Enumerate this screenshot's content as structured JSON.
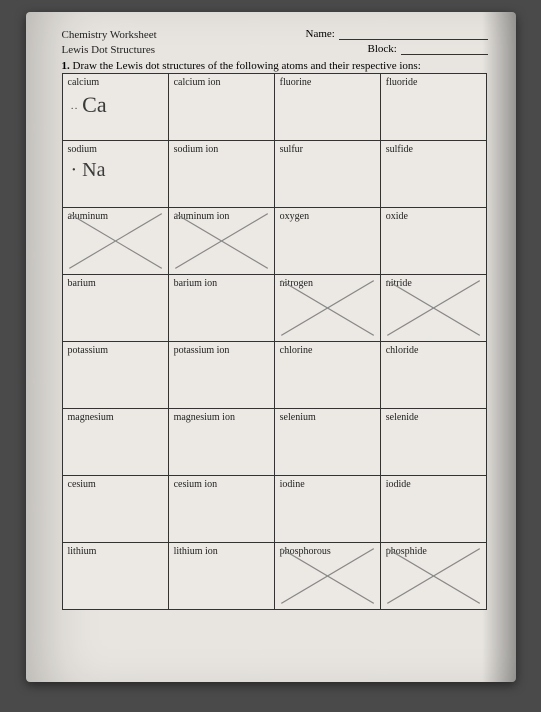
{
  "header": {
    "title1": "Chemistry Worksheet",
    "title2": "Lewis Dot Structures",
    "name_label": "Name:",
    "block_label": "Block:",
    "instruction_num": "1.",
    "instruction": "Draw the Lewis dot structures of the following atoms and their respective ions:"
  },
  "handwritten": {
    "ca": "Ca",
    "na": "Na"
  },
  "table": {
    "rows": [
      {
        "a": "calcium",
        "b": "calcium ion",
        "c": "fluorine",
        "d": "fluoride",
        "hw": "ca",
        "x_a": false,
        "x_b": false,
        "x_c": false,
        "x_d": false
      },
      {
        "a": "sodium",
        "b": "sodium ion",
        "c": "sulfur",
        "d": "sulfide",
        "hw": "na",
        "x_a": false,
        "x_b": false,
        "x_c": false,
        "x_d": false
      },
      {
        "a": "aluminum",
        "b": "aluminum ion",
        "c": "oxygen",
        "d": "oxide",
        "x_a": true,
        "x_b": true,
        "x_c": false,
        "x_d": false
      },
      {
        "a": "barium",
        "b": "barium ion",
        "c": "nitrogen",
        "d": "nitride",
        "x_a": false,
        "x_b": false,
        "x_c": true,
        "x_d": true
      },
      {
        "a": "potassium",
        "b": "potassium ion",
        "c": "chlorine",
        "d": "chloride",
        "x_a": false,
        "x_b": false,
        "x_c": false,
        "x_d": false
      },
      {
        "a": "magnesium",
        "b": "magnesium ion",
        "c": "selenium",
        "d": "selenide",
        "x_a": false,
        "x_b": false,
        "x_c": false,
        "x_d": false
      },
      {
        "a": "cesium",
        "b": "cesium ion",
        "c": "iodine",
        "d": "iodide",
        "x_a": false,
        "x_b": false,
        "x_c": false,
        "x_d": false
      },
      {
        "a": "lithium",
        "b": "lithium ion",
        "c": "phosphorous",
        "d": "phosphide",
        "x_a": false,
        "x_b": false,
        "x_c": true,
        "x_d": true
      }
    ]
  },
  "style": {
    "page_bg": "#e8e5e0",
    "cell_bg": "#ece9e4",
    "border": "#333333",
    "text": "#222222",
    "hw_color": "#3a3a3a",
    "x_stroke": "#888888",
    "font_body_pt": 10,
    "font_hdr_pt": 11,
    "font_hw_pt": 22
  }
}
